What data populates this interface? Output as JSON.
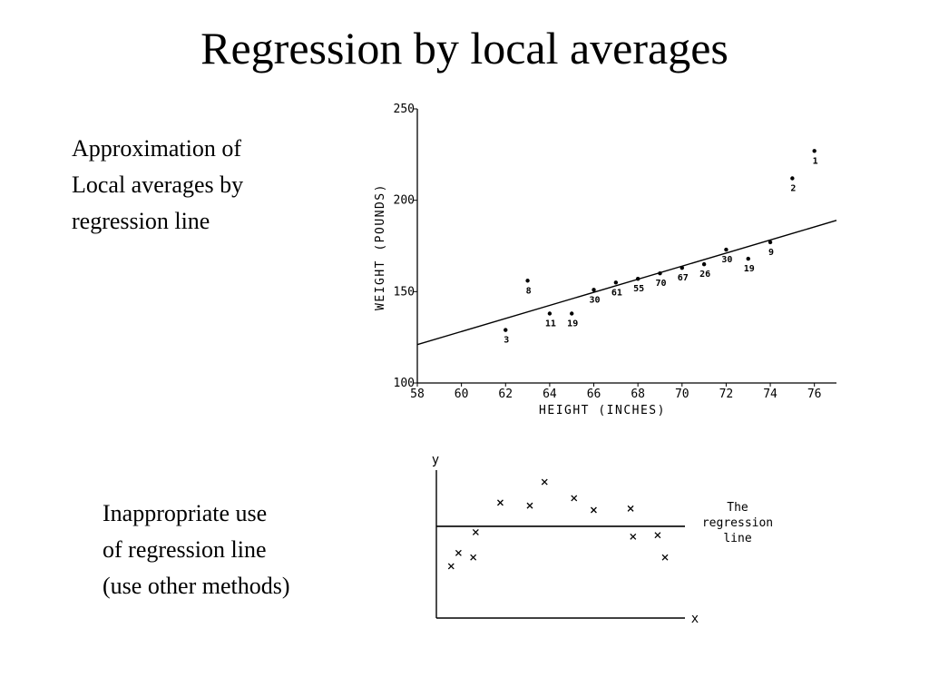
{
  "slide": {
    "title": "Regression by local averages",
    "caption_top": [
      "Approximation of",
      "Local averages by",
      "regression line"
    ],
    "caption_bottom": [
      "Inappropriate use",
      "of regression line",
      "(use other methods)"
    ]
  },
  "chart_data": [
    {
      "type": "scatter",
      "xlabel": "HEIGHT (INCHES)",
      "ylabel": "WEIGHT (POUNDS)",
      "xlim": [
        58,
        77
      ],
      "ylim": [
        100,
        250
      ],
      "x_ticks": [
        58,
        60,
        62,
        64,
        66,
        68,
        70,
        72,
        74,
        76
      ],
      "y_ticks": [
        100,
        150,
        200,
        250
      ],
      "grid": false,
      "points": [
        {
          "x": 62,
          "y": 129,
          "label": "3"
        },
        {
          "x": 63,
          "y": 156,
          "label": "8"
        },
        {
          "x": 64,
          "y": 138,
          "label": "11"
        },
        {
          "x": 65,
          "y": 138,
          "label": "19"
        },
        {
          "x": 66,
          "y": 151,
          "label": "30"
        },
        {
          "x": 67,
          "y": 155,
          "label": "61"
        },
        {
          "x": 68,
          "y": 157,
          "label": "55"
        },
        {
          "x": 69,
          "y": 160,
          "label": "70"
        },
        {
          "x": 70,
          "y": 163,
          "label": "67"
        },
        {
          "x": 71,
          "y": 165,
          "label": "26"
        },
        {
          "x": 72,
          "y": 173,
          "label": "30"
        },
        {
          "x": 73,
          "y": 168,
          "label": "19"
        },
        {
          "x": 74,
          "y": 177,
          "label": "9"
        },
        {
          "x": 75,
          "y": 212,
          "label": "2"
        },
        {
          "x": 76,
          "y": 227,
          "label": "1"
        }
      ],
      "regression_line": {
        "x": [
          58,
          77
        ],
        "y": [
          121,
          189
        ]
      }
    },
    {
      "type": "scatter",
      "xlabel": "x",
      "ylabel": "y",
      "axis_numbers": false,
      "xlim": [
        0,
        10
      ],
      "ylim": [
        0,
        10
      ],
      "points": [
        {
          "x": 0.6,
          "y": 3.5
        },
        {
          "x": 0.9,
          "y": 4.4
        },
        {
          "x": 1.5,
          "y": 4.1
        },
        {
          "x": 1.6,
          "y": 5.8
        },
        {
          "x": 2.6,
          "y": 7.8
        },
        {
          "x": 3.8,
          "y": 7.6
        },
        {
          "x": 4.4,
          "y": 9.2
        },
        {
          "x": 5.6,
          "y": 8.1
        },
        {
          "x": 6.4,
          "y": 7.3
        },
        {
          "x": 7.9,
          "y": 7.4
        },
        {
          "x": 8.0,
          "y": 5.5
        },
        {
          "x": 9.0,
          "y": 5.6
        },
        {
          "x": 9.3,
          "y": 4.1
        }
      ],
      "regression_line": {
        "y": 6.2
      },
      "annotation": [
        "The",
        "regression",
        "line"
      ]
    }
  ]
}
